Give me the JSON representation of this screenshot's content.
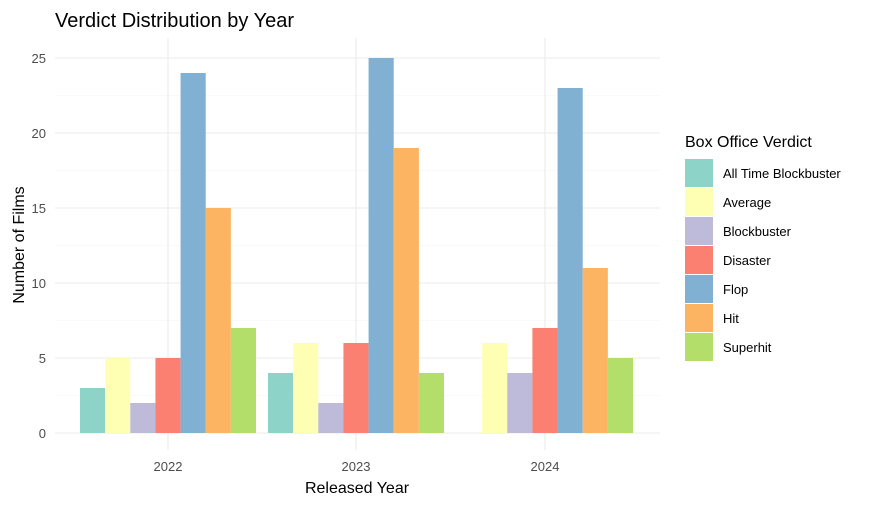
{
  "chart_data": {
    "type": "bar",
    "title": "Verdict Distribution by Year",
    "xlabel": "Released Year",
    "ylabel": "Number of Films",
    "categories": [
      "2022",
      "2023",
      "2024"
    ],
    "ylim": [
      0,
      26
    ],
    "yticks": [
      0,
      5,
      10,
      15,
      20,
      25
    ],
    "grid": true,
    "legend": {
      "title": "Box Office Verdict",
      "placement": "right"
    },
    "series": [
      {
        "name": "All Time Blockbuster",
        "color": "#8DD3C7",
        "values": [
          3,
          4,
          0
        ]
      },
      {
        "name": "Average",
        "color": "#FFFFB3",
        "values": [
          5,
          6,
          6
        ]
      },
      {
        "name": "Blockbuster",
        "color": "#BEBADA",
        "values": [
          2,
          2,
          4
        ]
      },
      {
        "name": "Disaster",
        "color": "#FB8072",
        "values": [
          5,
          6,
          7
        ]
      },
      {
        "name": "Flop",
        "color": "#80B1D3",
        "values": [
          24,
          25,
          23
        ]
      },
      {
        "name": "Hit",
        "color": "#FDB462",
        "values": [
          15,
          19,
          11
        ]
      },
      {
        "name": "Superhit",
        "color": "#B3DE69",
        "values": [
          7,
          4,
          5
        ]
      }
    ]
  }
}
